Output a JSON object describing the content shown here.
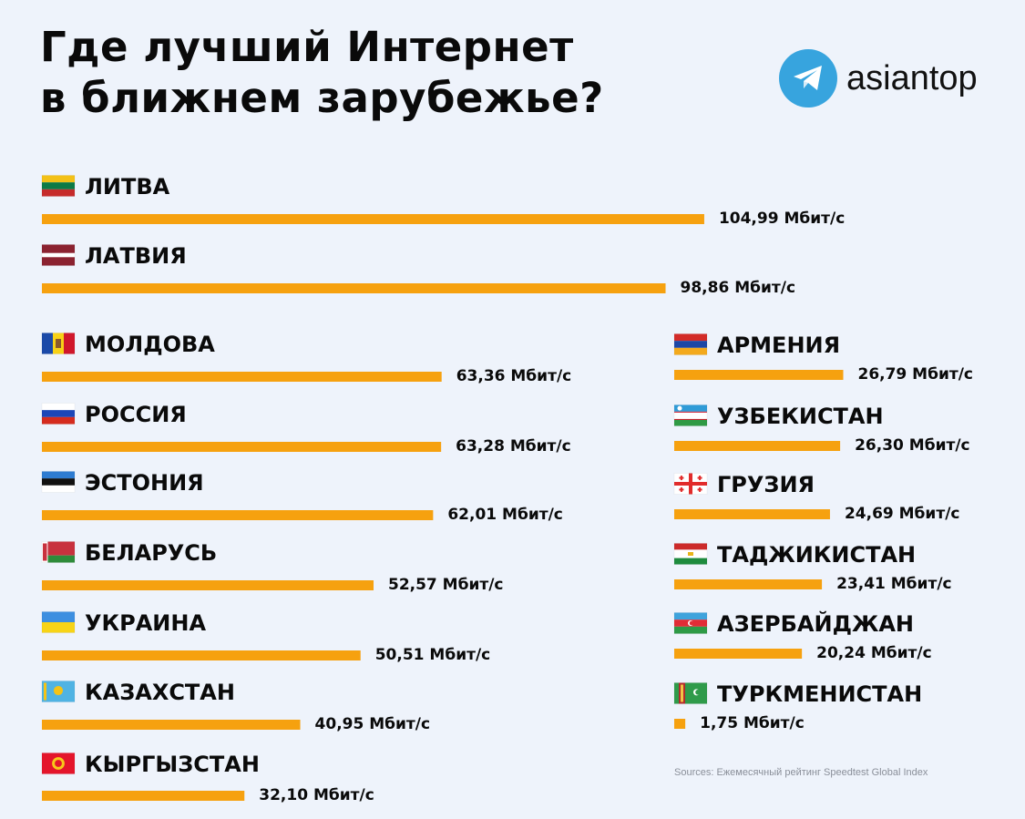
{
  "header": {
    "title_line1": "Где лучший Интернет",
    "title_line2": "в ближнем зарубежье?"
  },
  "logo": {
    "icon": "telegram-icon",
    "text": "asiantop",
    "color": "#37a4de"
  },
  "chart_data": {
    "type": "bar",
    "orientation": "horizontal",
    "title": "Где лучший Интернет в ближнем зарубежье?",
    "unit": "Мбит/с",
    "bar_color": "#f6a10f",
    "categories": [
      "ЛИТВА",
      "ЛАТВИЯ",
      "МОЛДОВА",
      "РОССИЯ",
      "ЭСТОНИЯ",
      "БЕЛАРУСЬ",
      "УКРАИНА",
      "КАЗАХСТАН",
      "КЫРГЫЗСТАН",
      "АРМЕНИЯ",
      "УЗБЕКИСТАН",
      "ГРУЗИЯ",
      "ТАДЖИКИСТАН",
      "АЗЕРБАЙДЖАН",
      "ТУРКМЕНИСТАН"
    ],
    "values": [
      104.99,
      98.86,
      63.36,
      63.28,
      62.01,
      52.57,
      50.51,
      40.95,
      32.1,
      26.79,
      26.3,
      24.69,
      23.41,
      20.24,
      1.75
    ],
    "value_labels": [
      "104,99 Мбит/с",
      "98,86 Мбит/с",
      "63,36 Мбит/с",
      "63,28 Мбит/с",
      "62,01 Мбит/с",
      "52,57 Мбит/с",
      "50,51 Мбит/с",
      "40,95 Мбит/с",
      "32,10 Мбит/с",
      "26,79 Мбит/с",
      "26,30 Мбит/с",
      "24,69 Мбит/с",
      "23,41 Мбит/с",
      "20,24 Мбит/с",
      "1,75 Мбит/с"
    ],
    "flags": [
      "flag-lithuania-icon",
      "flag-latvia-icon",
      "flag-moldova-icon",
      "flag-russia-icon",
      "flag-estonia-icon",
      "flag-belarus-icon",
      "flag-ukraine-icon",
      "flag-kazakhstan-icon",
      "flag-kyrgyzstan-icon",
      "flag-armenia-icon",
      "flag-uzbekistan-icon",
      "flag-georgia-icon",
      "flag-tajikistan-icon",
      "flag-azerbaijan-icon",
      "flag-turkmenistan-icon"
    ]
  },
  "footer": {
    "source": "Sources: Ежемесячный рейтинг Speedtest Global Index"
  }
}
